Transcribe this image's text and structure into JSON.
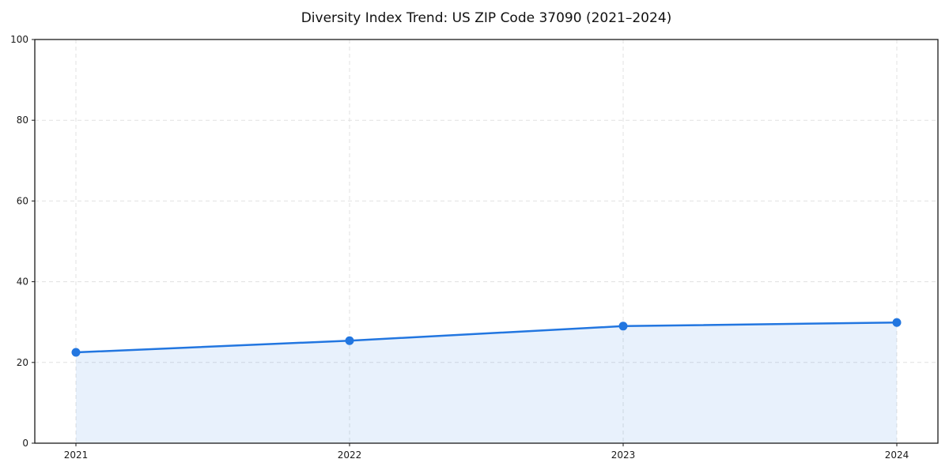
{
  "page": {
    "background": "#ffffff"
  },
  "chart_data": {
    "type": "line",
    "title": "Diversity Index Trend: US ZIP Code 37090 (2021–2024)",
    "x": [
      "2021",
      "2022",
      "2023",
      "2024"
    ],
    "series": [
      {
        "name": "Diversity Index",
        "values": [
          22.5,
          25.4,
          29.0,
          29.9
        ]
      }
    ],
    "xlabel": "",
    "ylabel": "",
    "ylim": [
      0,
      100
    ],
    "yticks": [
      0,
      20,
      40,
      60,
      80,
      100
    ],
    "grid": "dashed-both-axes",
    "legend": "none",
    "area_fill_to_zero": true,
    "marker": "circle",
    "colors": {
      "line": "#2276e0",
      "marker": "#2276e0",
      "fill": "#2276e0",
      "fill_opacity": 0.1,
      "grid": "#e1e1e1",
      "axis": "#1a1a1a",
      "text": "#1a1a1a",
      "background": "#ffffff"
    }
  }
}
